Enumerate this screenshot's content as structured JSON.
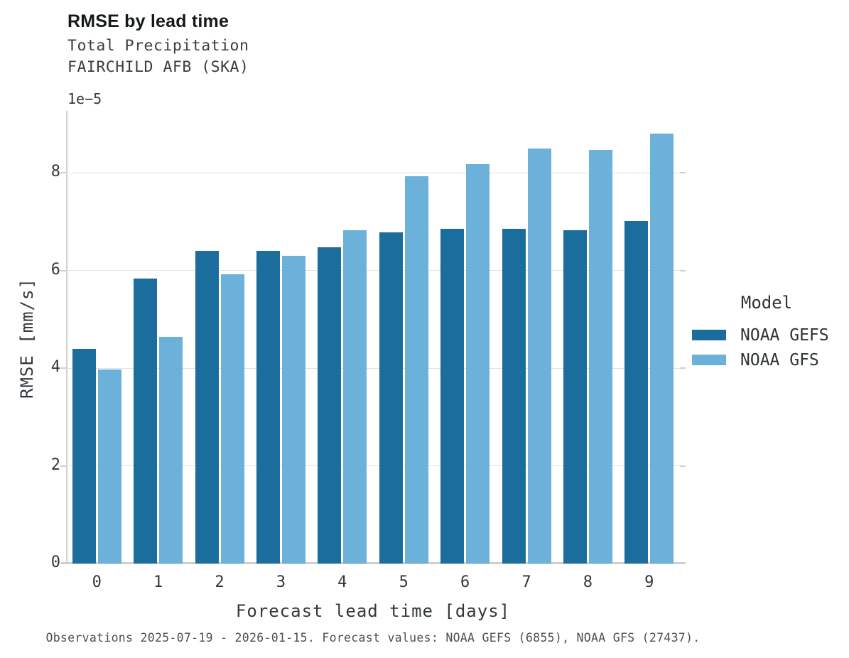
{
  "header": {
    "title": "RMSE by lead time",
    "subtitle_line1": "Total Precipitation",
    "subtitle_line2": "FAIRCHILD AFB (SKA)"
  },
  "colors": {
    "gefs": "#1b6d9e",
    "gfs": "#6cb1d9",
    "grid": "#e1e1e1",
    "spine": "#cfcfcf"
  },
  "chart_data": {
    "type": "bar",
    "title": "RMSE by lead time",
    "subtitle": [
      "Total Precipitation",
      "FAIRCHILD AFB (SKA)"
    ],
    "xlabel": "Forecast lead time [days]",
    "ylabel": "RMSE [mm/s]",
    "y_offset_label": "1e−5",
    "value_units": "1e-5 mm/s",
    "categories": [
      "0",
      "1",
      "2",
      "3",
      "4",
      "5",
      "6",
      "7",
      "8",
      "9"
    ],
    "series": [
      {
        "name": "NOAA GEFS",
        "color": "#1b6d9e",
        "values": [
          4.39,
          5.84,
          6.41,
          6.41,
          6.48,
          6.78,
          6.85,
          6.86,
          6.82,
          7.01
        ]
      },
      {
        "name": "NOAA GFS",
        "color": "#6cb1d9",
        "values": [
          3.97,
          4.64,
          5.92,
          6.3,
          6.82,
          7.93,
          8.18,
          8.5,
          8.47,
          8.8
        ]
      }
    ],
    "yticks": [
      0,
      2,
      4,
      6,
      8
    ],
    "ylim": [
      0,
      9.27
    ],
    "grid": "horizontal",
    "legend_position": "center right"
  },
  "axes": {
    "x_label": "Forecast lead time [days]",
    "y_label": "RMSE [mm/s]",
    "offset_label": "1e−5"
  },
  "legend": {
    "title": "Model",
    "items": [
      {
        "label": "NOAA GEFS"
      },
      {
        "label": "NOAA GFS"
      }
    ]
  },
  "footer": {
    "text": "Observations 2025-07-19 - 2026-01-15. Forecast values: NOAA GEFS (6855), NOAA GFS (27437)."
  }
}
